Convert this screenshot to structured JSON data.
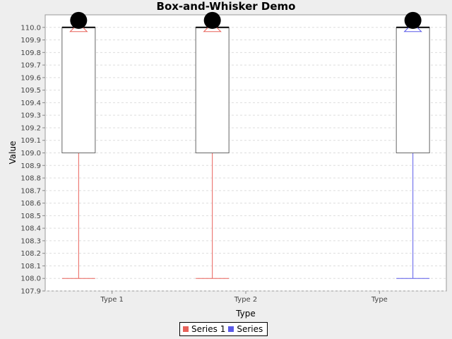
{
  "chart_data": {
    "type": "boxplot",
    "title": "Box-and-Whisker Demo",
    "xlabel": "Type",
    "ylabel": "Value",
    "categories": [
      "Type 1",
      "Type 2",
      "Type"
    ],
    "ylim": [
      107.9,
      110.1
    ],
    "yticks": [
      "107.9",
      "108.0",
      "108.1",
      "108.2",
      "108.3",
      "108.4",
      "108.5",
      "108.6",
      "108.7",
      "108.8",
      "108.9",
      "109.0",
      "109.1",
      "109.2",
      "109.3",
      "109.4",
      "109.5",
      "109.6",
      "109.7",
      "109.8",
      "109.9",
      "110.0"
    ],
    "grid": true,
    "legend_position": "bottom",
    "series": [
      {
        "name": "Series 1",
        "color": "#e8625a",
        "boxes": [
          {
            "category": "Type 1",
            "min": 108.0,
            "q1": 109.0,
            "median": 110.0,
            "q3": 110.0,
            "max": 110.0,
            "mean": 110.0,
            "outlier": 110.05
          },
          {
            "category": "Type 2",
            "min": 108.0,
            "q1": 109.0,
            "median": 110.0,
            "q3": 110.0,
            "max": 110.0,
            "mean": 110.0,
            "outlier": 110.05
          }
        ]
      },
      {
        "name": "Series",
        "color": "#5a5ae8",
        "boxes": [
          {
            "category": "Type",
            "min": 108.0,
            "q1": 109.0,
            "median": 110.0,
            "q3": 110.0,
            "max": 110.0,
            "mean": 110.0,
            "outlier": 110.05
          }
        ]
      }
    ]
  },
  "legend": {
    "items": [
      {
        "label": "Series 1",
        "color": "#e8625a"
      },
      {
        "label": "Series",
        "color": "#5a5ae8"
      }
    ]
  }
}
